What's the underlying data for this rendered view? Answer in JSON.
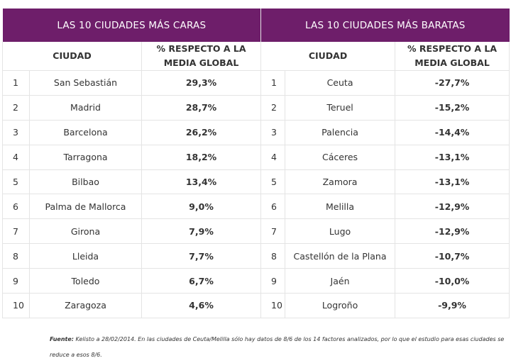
{
  "expensive": {
    "title": "LAS 10 CIUDADES MÁS CARAS",
    "col_city": "CIUDAD",
    "col_pct_l1": "% RESPECTO A LA",
    "col_pct_l2": "MEDIA GLOBAL",
    "rows": [
      {
        "rank": "1",
        "city": "San Sebastián",
        "pct": "29,3%"
      },
      {
        "rank": "2",
        "city": "Madrid",
        "pct": "28,7%"
      },
      {
        "rank": "3",
        "city": "Barcelona",
        "pct": "26,2%"
      },
      {
        "rank": "4",
        "city": "Tarragona",
        "pct": "18,2%"
      },
      {
        "rank": "5",
        "city": "Bilbao",
        "pct": "13,4%"
      },
      {
        "rank": "6",
        "city": "Palma de Mallorca",
        "pct": "9,0%"
      },
      {
        "rank": "7",
        "city": "Girona",
        "pct": "7,9%"
      },
      {
        "rank": "8",
        "city": "Lleida",
        "pct": "7,7%"
      },
      {
        "rank": "9",
        "city": "Toledo",
        "pct": "6,7%"
      },
      {
        "rank": "10",
        "city": "Zaragoza",
        "pct": "4,6%"
      }
    ]
  },
  "cheap": {
    "title": "LAS 10 CIUDADES MÁS BARATAS",
    "col_city": "CIUDAD",
    "col_pct_l1": "% RESPECTO A LA",
    "col_pct_l2": "MEDIA GLOBAL",
    "rows": [
      {
        "rank": "1",
        "city": "Ceuta",
        "pct": "-27,7%"
      },
      {
        "rank": "2",
        "city": "Teruel",
        "pct": "-15,2%"
      },
      {
        "rank": "3",
        "city": "Palencia",
        "pct": "-14,4%"
      },
      {
        "rank": "4",
        "city": "Cáceres",
        "pct": "-13,1%"
      },
      {
        "rank": "5",
        "city": "Zamora",
        "pct": "-13,1%"
      },
      {
        "rank": "6",
        "city": "Melilla",
        "pct": "-12,9%"
      },
      {
        "rank": "7",
        "city": "Lugo",
        "pct": "-12,9%"
      },
      {
        "rank": "8",
        "city": "Castellón de la Plana",
        "pct": "-10,7%"
      },
      {
        "rank": "9",
        "city": "Jaén",
        "pct": "-10,0%"
      },
      {
        "rank": "10",
        "city": "Logroño",
        "pct": "-9,9%"
      }
    ]
  },
  "note": {
    "label": "Fuente:",
    "line1": " Kelisto a 28/02/2014. En las ciudades de Ceuta/Melilla sólo hay datos de 8/6 de los 14 factores analizados, por lo que el estudio para esas ciudades se",
    "line2": "reduce a esos 8/6."
  },
  "colors": {
    "banner": "#6e1e6a",
    "grid": "#e4e4e4"
  }
}
